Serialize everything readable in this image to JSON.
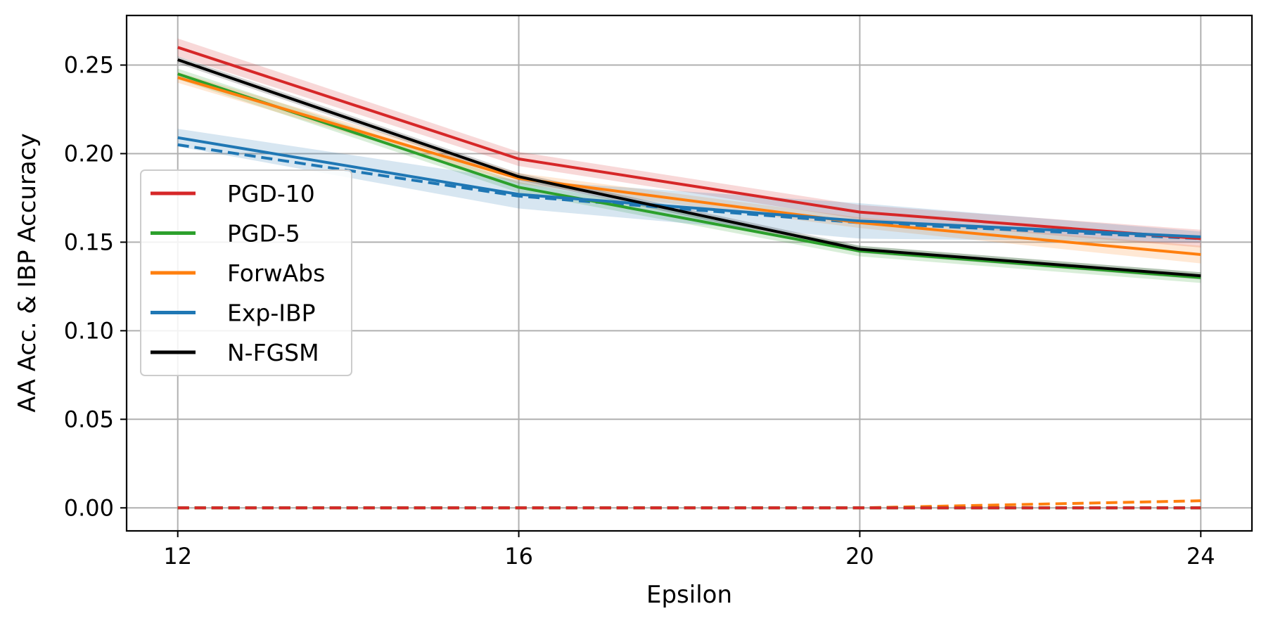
{
  "chart_data": {
    "type": "line",
    "xlabel": "Epsilon",
    "ylabel": "AA Acc. & IBP Accuracy",
    "x": [
      12,
      16,
      20,
      24
    ],
    "xticks": [
      "12",
      "16",
      "20",
      "24"
    ],
    "yticks": [
      "0.00",
      "0.05",
      "0.10",
      "0.15",
      "0.20",
      "0.25"
    ],
    "ytick_values": [
      0.0,
      0.05,
      0.1,
      0.15,
      0.2,
      0.25
    ],
    "xlim": [
      11.4,
      24.6
    ],
    "ylim": [
      -0.013,
      0.278
    ],
    "grid": true,
    "legend_position": "center-left",
    "series": [
      {
        "name": "PGD-10",
        "color": "#d62728",
        "aa_acc": [
          0.26,
          0.197,
          0.167,
          0.152
        ],
        "aa_band": [
          0.005,
          0.004,
          0.004,
          0.005
        ],
        "ibp_acc": [
          0.0,
          0.0,
          0.0,
          0.0
        ]
      },
      {
        "name": "PGD-5",
        "color": "#2ca02c",
        "aa_acc": [
          0.245,
          0.181,
          0.145,
          0.13
        ],
        "aa_band": [
          0.003,
          0.003,
          0.003,
          0.003
        ],
        "ibp_acc": [
          0.0,
          0.0,
          0.0,
          0.0
        ]
      },
      {
        "name": "ForwAbs",
        "color": "#ff7f0e",
        "aa_acc": [
          0.243,
          0.186,
          0.161,
          0.143
        ],
        "aa_band": [
          0.003,
          0.003,
          0.003,
          0.005
        ],
        "ibp_acc": [
          0.0,
          0.0,
          0.0,
          0.004
        ]
      },
      {
        "name": "Exp-IBP",
        "color": "#1f77b4",
        "aa_acc": [
          0.209,
          0.177,
          0.162,
          0.153
        ],
        "aa_band": [
          0.005,
          0.008,
          0.01,
          0.003
        ],
        "ibp_acc": [
          0.205,
          0.176,
          0.161,
          0.152
        ]
      },
      {
        "name": "N-FGSM",
        "color": "#000000",
        "aa_acc": [
          0.253,
          0.187,
          0.146,
          0.131
        ],
        "aa_band": [
          0.002,
          0.002,
          0.002,
          0.002
        ],
        "ibp_acc": [
          0.0,
          0.0,
          0.0,
          0.0
        ]
      }
    ]
  }
}
